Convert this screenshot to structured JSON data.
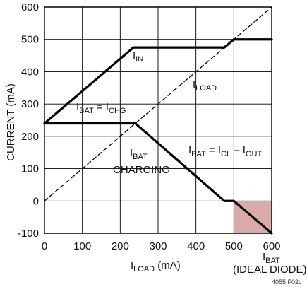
{
  "chart_data": {
    "type": "line",
    "xlabel_main": "I",
    "xlabel_sub": "LOAD",
    "xlabel_unit": " (mA)",
    "ylabel": "CURRENT (mA)",
    "xlim": [
      0,
      600
    ],
    "ylim": [
      -100,
      600
    ],
    "x_ticks": [
      0,
      100,
      200,
      300,
      400,
      500,
      600
    ],
    "y_ticks": [
      -100,
      0,
      100,
      200,
      300,
      400,
      500,
      600
    ],
    "grid": true,
    "series": [
      {
        "label_main": "I",
        "label_sub": "IN",
        "style": "solid",
        "points": [
          [
            0,
            240
          ],
          [
            235,
            475
          ],
          [
            475,
            475
          ],
          [
            500,
            500
          ],
          [
            600,
            500
          ]
        ]
      },
      {
        "label_main": "I",
        "label_sub": "LOAD",
        "style": "dashed",
        "points": [
          [
            0,
            0
          ],
          [
            600,
            600
          ]
        ]
      },
      {
        "label_main": "I",
        "label_sub": "BAT",
        "style": "solid",
        "points": [
          [
            0,
            240
          ],
          [
            240,
            240
          ],
          [
            475,
            0
          ],
          [
            500,
            0
          ],
          [
            600,
            -100
          ]
        ]
      }
    ],
    "shaded_region": {
      "x": [
        500,
        600
      ],
      "y": [
        -100,
        0
      ],
      "color": "#d8aaa8"
    },
    "annotations": {
      "i_in": {
        "main": "I",
        "sub": "IN"
      },
      "i_load": {
        "main": "I",
        "sub": "LOAD"
      },
      "ibat_eq_ichg": {
        "main1": "I",
        "sub1": "BAT",
        "mid": " = I",
        "sub2": "CHG"
      },
      "ibat_charging_line1": {
        "main": "I",
        "sub": "BAT"
      },
      "ibat_charging_line2": "CHARGING",
      "ibat_eq_icl": {
        "main1": "I",
        "sub1": "BAT",
        "mid1": " = I",
        "sub2": "CL",
        "mid2": " – I",
        "sub3": "OUT"
      },
      "ibat_ideal_line1": {
        "main": "I",
        "sub": "BAT"
      },
      "ibat_ideal_line2": "(IDEAL DIODE)"
    },
    "figure_id": "4055 F02c"
  },
  "colors": {
    "line": "#000000",
    "grid": "#000000",
    "shade": "#d8aaa8"
  }
}
